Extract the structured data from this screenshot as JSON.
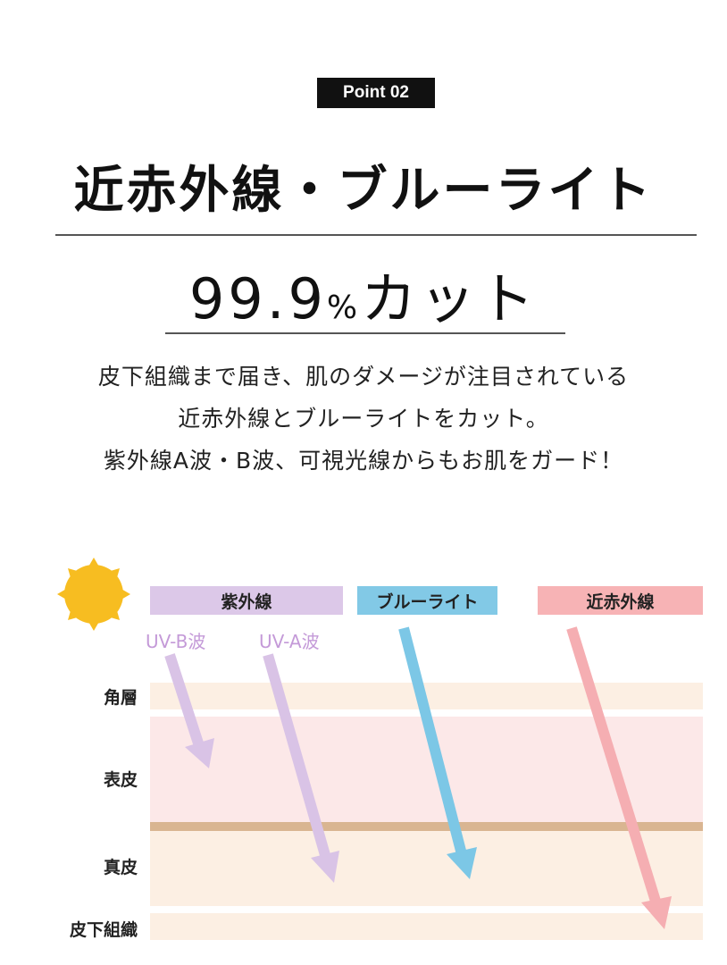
{
  "badge": "Point 02",
  "title": "近赤外線・ブルーライト",
  "subtitle": {
    "number": "99.9",
    "percent": "%",
    "rest": "カット"
  },
  "description": [
    "皮下組織まで届き、肌のダメージが注目されている",
    "近赤外線とブルーライトをカット。",
    "紫外線A波・B波、可視光線からもお肌をガード！"
  ],
  "diagram": {
    "sun_icon": "sun-icon",
    "rays": [
      {
        "label": "紫外線",
        "color": "#dcc8e8"
      },
      {
        "label": "ブルーライト",
        "color": "#82c9e6"
      },
      {
        "label": "近赤外線",
        "color": "#f7b3b5"
      }
    ],
    "waves": [
      "UV-B波",
      "UV-A波"
    ],
    "layers": [
      "角層",
      "表皮",
      "真皮",
      "皮下組織"
    ],
    "colors": {
      "uv": "#d9c3e6",
      "blue": "#7cc7e6",
      "nir": "#f5aeb2",
      "beige": "#fcefe3",
      "pink": "#fce8e8",
      "boundary": "#d9b591",
      "sun": "#f7bd21"
    }
  }
}
